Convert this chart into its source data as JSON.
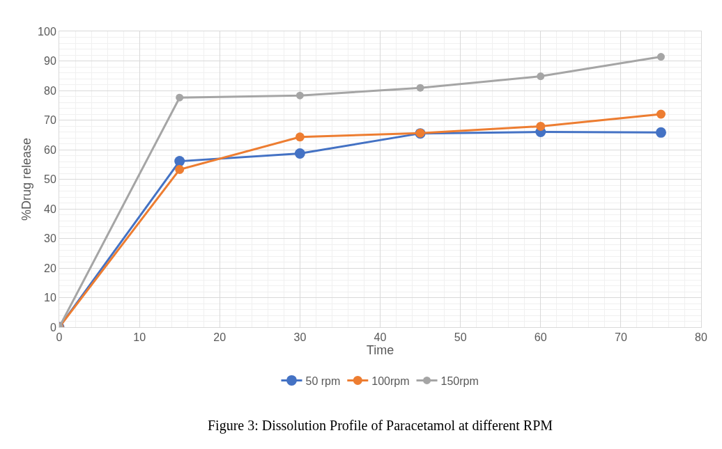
{
  "chart_data": {
    "type": "line",
    "xlabel": "Time",
    "ylabel": "%Drug release",
    "x": [
      0,
      15,
      30,
      45,
      60,
      75
    ],
    "series": [
      {
        "name": "50 rpm",
        "color": "#4472c4",
        "values": [
          0,
          56.1,
          58.7,
          65.5,
          66.0,
          65.8
        ]
      },
      {
        "name": "100rpm",
        "color": "#ed7d31",
        "values": [
          0,
          53.3,
          64.3,
          65.6,
          67.9,
          72.0
        ]
      },
      {
        "name": "150rpm",
        "color": "#a5a5a5",
        "values": [
          0,
          77.6,
          78.3,
          80.9,
          84.8,
          91.4
        ]
      }
    ],
    "xlim": [
      0,
      80
    ],
    "xticks": [
      0,
      10,
      20,
      30,
      40,
      50,
      60,
      70,
      80
    ],
    "ylim": [
      0,
      100
    ],
    "yticks": [
      0,
      10,
      20,
      30,
      40,
      50,
      60,
      70,
      80,
      90,
      100
    ],
    "grid": true,
    "legend": "bottom",
    "marker": "circle",
    "line_style": "solid",
    "annotations": [
      "Figure 3: Dissolution Profile of Paracetamol at different RPM"
    ]
  }
}
